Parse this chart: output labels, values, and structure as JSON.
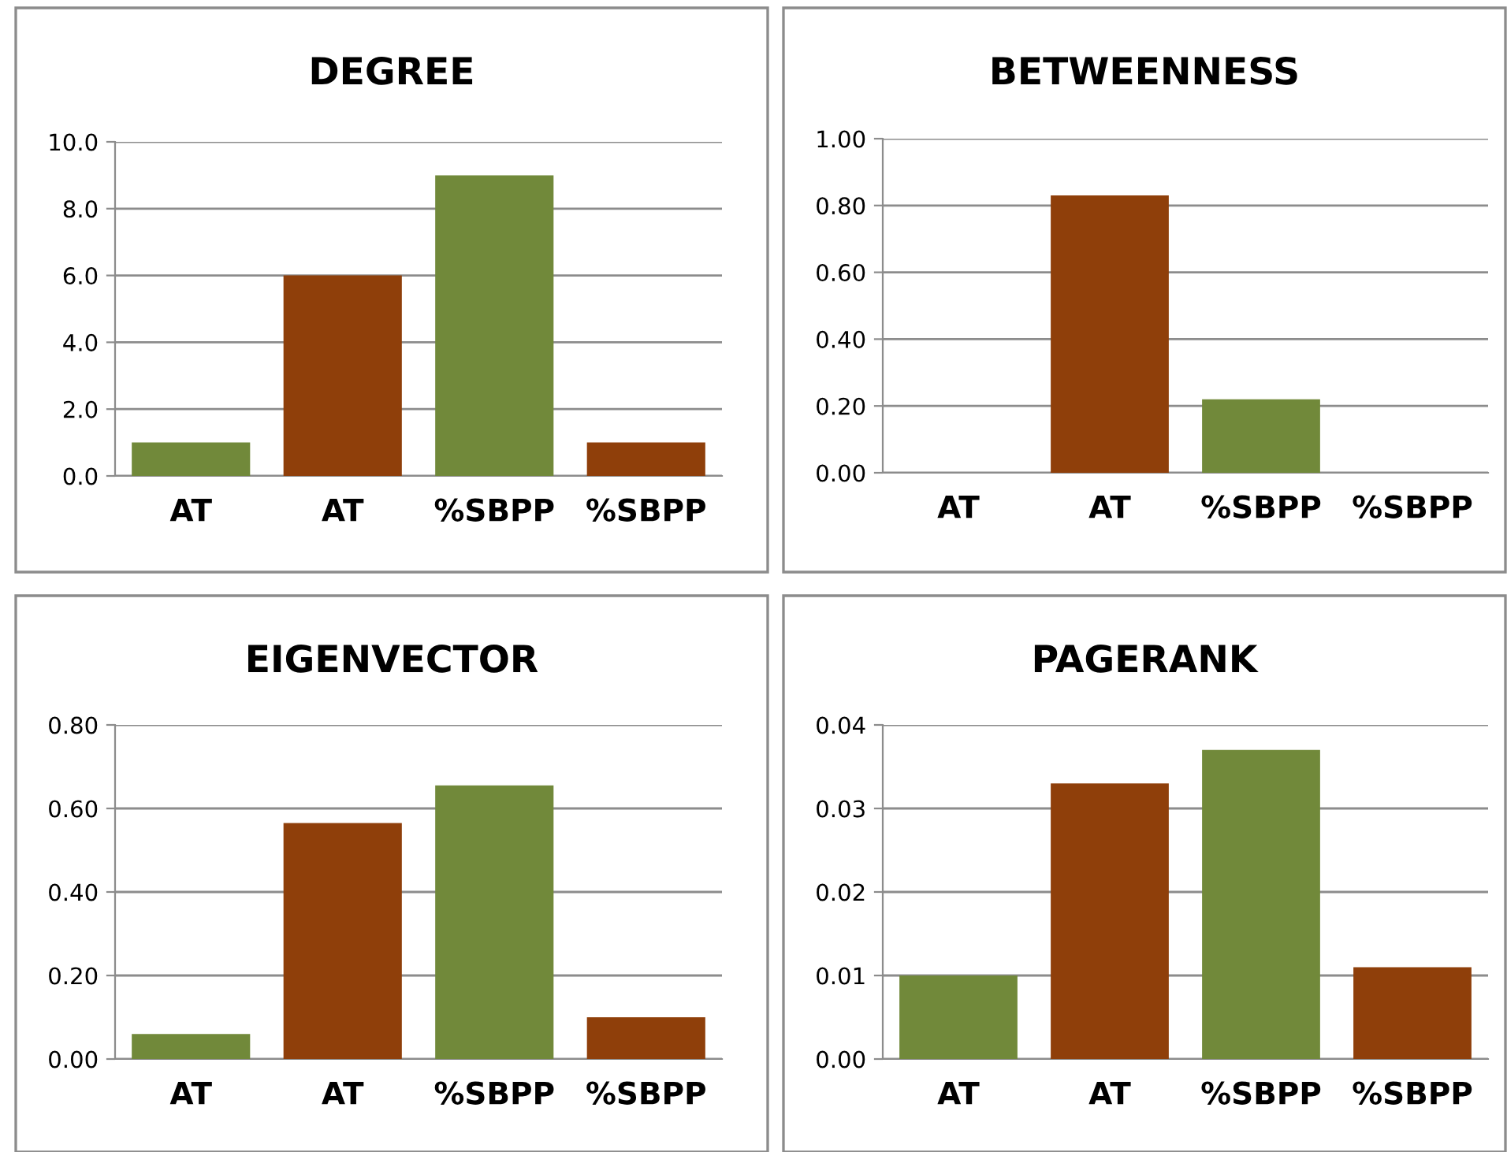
{
  "chart_data": [
    {
      "type": "bar",
      "title": "DEGREE",
      "categories": [
        "AT",
        "AT",
        "%SBPP",
        "%SBPP"
      ],
      "values": [
        1,
        6,
        9,
        1
      ],
      "colors": [
        "#71893a",
        "#8f3f0a",
        "#71893a",
        "#8f3f0a"
      ],
      "ylim": [
        0,
        10
      ],
      "yticks": [
        {
          "value": 0,
          "label": "0.0"
        },
        {
          "value": 2,
          "label": "2.0"
        },
        {
          "value": 4,
          "label": "4.0"
        },
        {
          "value": 6,
          "label": "6.0"
        },
        {
          "value": 8,
          "label": "8.0"
        },
        {
          "value": 10,
          "label": "10.0"
        }
      ],
      "grid": "y"
    },
    {
      "type": "bar",
      "title": "BETWEENNESS",
      "categories": [
        "AT",
        "AT",
        "%SBPP",
        "%SBPP"
      ],
      "values": [
        0,
        0.83,
        0.22,
        0
      ],
      "colors": [
        "#71893a",
        "#8f3f0a",
        "#71893a",
        "#8f3f0a"
      ],
      "ylim": [
        0,
        1
      ],
      "yticks": [
        {
          "value": 0,
          "label": "0.00"
        },
        {
          "value": 0.2,
          "label": "0.20"
        },
        {
          "value": 0.4,
          "label": "0.40"
        },
        {
          "value": 0.6,
          "label": "0.60"
        },
        {
          "value": 0.8,
          "label": "0.80"
        },
        {
          "value": 1,
          "label": "1.00"
        }
      ],
      "grid": "y"
    },
    {
      "type": "bar",
      "title": "EIGENVECTOR",
      "categories": [
        "AT",
        "AT",
        "%SBPP",
        "%SBPP"
      ],
      "values": [
        0.06,
        0.565,
        0.655,
        0.1
      ],
      "colors": [
        "#71893a",
        "#8f3f0a",
        "#71893a",
        "#8f3f0a"
      ],
      "ylim": [
        0,
        0.8
      ],
      "yticks": [
        {
          "value": 0,
          "label": "0.00"
        },
        {
          "value": 0.2,
          "label": "0.20"
        },
        {
          "value": 0.4,
          "label": "0.40"
        },
        {
          "value": 0.6,
          "label": "0.60"
        },
        {
          "value": 0.8,
          "label": "0.80"
        }
      ],
      "grid": "y"
    },
    {
      "type": "bar",
      "title": "PAGERANK",
      "categories": [
        "AT",
        "AT",
        "%SBPP",
        "%SBPP"
      ],
      "values": [
        0.01,
        0.033,
        0.037,
        0.011
      ],
      "colors": [
        "#71893a",
        "#8f3f0a",
        "#71893a",
        "#8f3f0a"
      ],
      "ylim": [
        0,
        0.04
      ],
      "yticks": [
        {
          "value": 0,
          "label": "0.00"
        },
        {
          "value": 0.01,
          "label": "0.01"
        },
        {
          "value": 0.02,
          "label": "0.02"
        },
        {
          "value": 0.03,
          "label": "0.03"
        },
        {
          "value": 0.04,
          "label": "0.04"
        }
      ],
      "grid": "y"
    }
  ]
}
